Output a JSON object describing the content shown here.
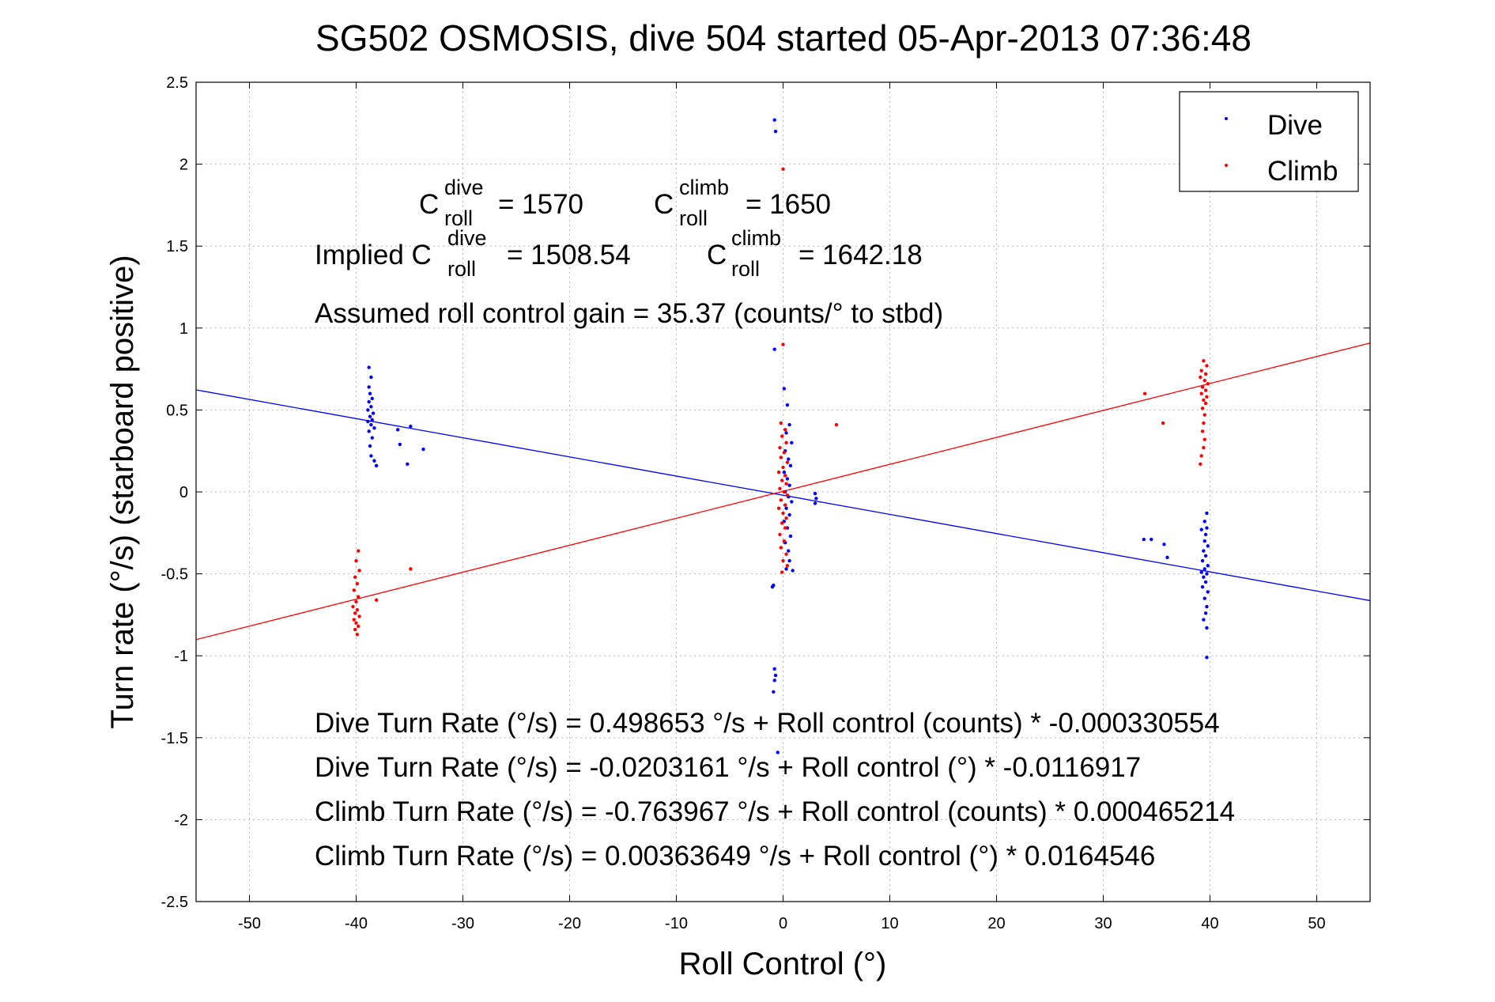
{
  "chart_data": {
    "type": "scatter",
    "title": "SG502 OSMOSIS, dive 504 started 05-Apr-2013 07:36:48",
    "xlabel": "Roll Control (°)",
    "ylabel": "Turn rate (°/s) (starboard positive)",
    "xlim": [
      -55,
      55
    ],
    "ylim": [
      -2.5,
      2.5
    ],
    "xticks": [
      -50,
      -40,
      -30,
      -20,
      -10,
      0,
      10,
      20,
      30,
      40,
      50
    ],
    "yticks": [
      -2.5,
      -2,
      -1.5,
      -1,
      -0.5,
      0,
      0.5,
      1,
      1.5,
      2,
      2.5
    ],
    "grid": true,
    "legend": {
      "placement": "top-right",
      "entries": [
        "Dive",
        "Climb"
      ]
    },
    "colors": {
      "dive": "#0000ff",
      "climb": "#ff0000"
    },
    "series": [
      {
        "name": "Dive",
        "color": "#0000ff",
        "points": [
          [
            -38.8,
            0.76
          ],
          [
            -38.6,
            0.7
          ],
          [
            -38.8,
            0.64
          ],
          [
            -38.7,
            0.6
          ],
          [
            -38.5,
            0.57
          ],
          [
            -38.8,
            0.55
          ],
          [
            -38.6,
            0.52
          ],
          [
            -38.9,
            0.5
          ],
          [
            -38.4,
            0.48
          ],
          [
            -38.7,
            0.46
          ],
          [
            -38.5,
            0.44
          ],
          [
            -38.9,
            0.43
          ],
          [
            -38.6,
            0.41
          ],
          [
            -38.3,
            0.39
          ],
          [
            -38.8,
            0.37
          ],
          [
            -38.5,
            0.33
          ],
          [
            -38.7,
            0.28
          ],
          [
            -38.6,
            0.22
          ],
          [
            -38.3,
            0.19
          ],
          [
            -38.1,
            0.16
          ],
          [
            -36.1,
            0.38
          ],
          [
            -34.9,
            0.4
          ],
          [
            -35.9,
            0.29
          ],
          [
            -35.2,
            0.17
          ],
          [
            -33.7,
            0.26
          ],
          [
            -0.8,
            2.27
          ],
          [
            -0.7,
            2.2
          ],
          [
            -0.8,
            0.87
          ],
          [
            -0.9,
            -0.57
          ],
          [
            -1.0,
            -0.58
          ],
          [
            -0.8,
            -1.08
          ],
          [
            -0.7,
            -1.12
          ],
          [
            -0.8,
            -1.15
          ],
          [
            -0.9,
            -1.22
          ],
          [
            -0.5,
            -1.59
          ],
          [
            0.1,
            0.63
          ],
          [
            0.4,
            0.53
          ],
          [
            0.6,
            0.41
          ],
          [
            0.3,
            0.36
          ],
          [
            0.8,
            0.3
          ],
          [
            0.2,
            0.25
          ],
          [
            0.5,
            0.2
          ],
          [
            0.7,
            0.16
          ],
          [
            0.1,
            0.12
          ],
          [
            0.4,
            0.08
          ],
          [
            0.6,
            0.04
          ],
          [
            0.2,
            0.0
          ],
          [
            0.5,
            -0.03
          ],
          [
            0.8,
            -0.06
          ],
          [
            0.3,
            -0.1
          ],
          [
            0.6,
            -0.14
          ],
          [
            0.1,
            -0.18
          ],
          [
            0.4,
            -0.22
          ],
          [
            0.7,
            -0.27
          ],
          [
            0.2,
            -0.31
          ],
          [
            0.5,
            -0.36
          ],
          [
            0.6,
            -0.42
          ],
          [
            0.3,
            -0.47
          ],
          [
            0.9,
            -0.48
          ],
          [
            3.0,
            -0.01
          ],
          [
            3.1,
            -0.04
          ],
          [
            3.0,
            -0.07
          ],
          [
            33.8,
            -0.29
          ],
          [
            34.5,
            -0.29
          ],
          [
            35.7,
            -0.32
          ],
          [
            36.0,
            -0.4
          ],
          [
            39.7,
            -0.13
          ],
          [
            39.5,
            -0.18
          ],
          [
            39.7,
            -0.22
          ],
          [
            39.2,
            -0.23
          ],
          [
            39.6,
            -0.26
          ],
          [
            39.5,
            -0.3
          ],
          [
            39.8,
            -0.33
          ],
          [
            39.4,
            -0.36
          ],
          [
            39.6,
            -0.39
          ],
          [
            39.3,
            -0.42
          ],
          [
            39.8,
            -0.45
          ],
          [
            39.5,
            -0.47
          ],
          [
            39.2,
            -0.49
          ],
          [
            39.7,
            -0.5
          ],
          [
            39.4,
            -0.52
          ],
          [
            39.6,
            -0.55
          ],
          [
            39.3,
            -0.58
          ],
          [
            39.8,
            -0.61
          ],
          [
            39.5,
            -0.65
          ],
          [
            39.7,
            -0.7
          ],
          [
            39.6,
            -0.74
          ],
          [
            39.4,
            -0.78
          ],
          [
            39.7,
            -0.83
          ],
          [
            39.7,
            -1.01
          ]
        ]
      },
      {
        "name": "Climb",
        "color": "#ff0000",
        "points": [
          [
            -39.8,
            -0.36
          ],
          [
            -40.0,
            -0.42
          ],
          [
            -39.7,
            -0.48
          ],
          [
            -40.1,
            -0.52
          ],
          [
            -39.9,
            -0.56
          ],
          [
            -40.2,
            -0.6
          ],
          [
            -39.8,
            -0.64
          ],
          [
            -40.0,
            -0.67
          ],
          [
            -40.3,
            -0.7
          ],
          [
            -39.9,
            -0.72
          ],
          [
            -40.1,
            -0.74
          ],
          [
            -39.7,
            -0.76
          ],
          [
            -40.2,
            -0.78
          ],
          [
            -40.0,
            -0.8
          ],
          [
            -39.8,
            -0.82
          ],
          [
            -40.1,
            -0.84
          ],
          [
            -39.9,
            -0.87
          ],
          [
            -38.1,
            -0.66
          ],
          [
            -34.9,
            -0.47
          ],
          [
            0.0,
            1.97
          ],
          [
            0.0,
            0.9
          ],
          [
            -0.2,
            0.42
          ],
          [
            0.2,
            0.38
          ],
          [
            -0.1,
            0.34
          ],
          [
            0.3,
            0.3
          ],
          [
            -0.3,
            0.27
          ],
          [
            0.1,
            0.24
          ],
          [
            -0.2,
            0.21
          ],
          [
            0.4,
            0.18
          ],
          [
            0.0,
            0.15
          ],
          [
            -0.4,
            0.12
          ],
          [
            0.2,
            0.1
          ],
          [
            -0.1,
            0.07
          ],
          [
            0.3,
            0.05
          ],
          [
            -0.3,
            0.02
          ],
          [
            0.1,
            0.0
          ],
          [
            0.4,
            -0.02
          ],
          [
            -0.2,
            -0.05
          ],
          [
            0.2,
            -0.08
          ],
          [
            -0.4,
            -0.1
          ],
          [
            0.0,
            -0.13
          ],
          [
            0.3,
            -0.16
          ],
          [
            -0.1,
            -0.19
          ],
          [
            0.2,
            -0.22
          ],
          [
            -0.3,
            -0.26
          ],
          [
            0.1,
            -0.3
          ],
          [
            -0.2,
            -0.34
          ],
          [
            0.3,
            -0.38
          ],
          [
            0.0,
            -0.42
          ],
          [
            0.4,
            -0.45
          ],
          [
            -0.1,
            -0.49
          ],
          [
            5.0,
            0.41
          ],
          [
            33.9,
            0.6
          ],
          [
            35.6,
            0.42
          ],
          [
            39.4,
            0.8
          ],
          [
            39.7,
            0.77
          ],
          [
            39.2,
            0.74
          ],
          [
            39.6,
            0.72
          ],
          [
            39.1,
            0.7
          ],
          [
            39.5,
            0.68
          ],
          [
            39.8,
            0.66
          ],
          [
            39.3,
            0.64
          ],
          [
            39.6,
            0.62
          ],
          [
            39.2,
            0.6
          ],
          [
            39.7,
            0.58
          ],
          [
            39.4,
            0.56
          ],
          [
            39.6,
            0.54
          ],
          [
            39.3,
            0.51
          ],
          [
            39.5,
            0.47
          ],
          [
            39.4,
            0.42
          ],
          [
            39.3,
            0.37
          ],
          [
            39.5,
            0.32
          ],
          [
            39.4,
            0.27
          ],
          [
            39.2,
            0.22
          ],
          [
            39.1,
            0.17
          ]
        ]
      }
    ],
    "fit_lines": [
      {
        "name": "Dive",
        "color": "#0000ff",
        "intercept": -0.0203161,
        "slope": -0.0116917
      },
      {
        "name": "Climb",
        "color": "#ff0000",
        "intercept": 0.00363649,
        "slope": 0.0164546
      }
    ],
    "annotations": {
      "c_roll_dive": {
        "prefix": "C",
        "sup": "dive",
        "sub": "roll",
        "value": "= 1570"
      },
      "c_roll_climb": {
        "prefix": "C",
        "sup": "climb",
        "sub": "roll",
        "value": "= 1650"
      },
      "implied_dive": {
        "prefix": "Implied C",
        "sup": "dive",
        "sub": "roll",
        "value": "= 1508.54"
      },
      "implied_climb": {
        "prefix": "C",
        "sup": "climb",
        "sub": "roll",
        "value": "= 1642.18"
      },
      "gain": "Assumed roll control gain = 35.37 (counts/° to stbd)",
      "eq1": "Dive Turn Rate (°/s) = 0.498653 °/s + Roll control (counts) * -0.000330554",
      "eq2": "Dive Turn Rate (°/s) = -0.0203161 °/s + Roll control (°) * -0.0116917",
      "eq3": "Climb Turn Rate (°/s) = -0.763967 °/s + Roll control (counts) * 0.000465214",
      "eq4": "Climb Turn Rate (°/s) = 0.00363649 °/s + Roll control (°) * 0.0164546"
    }
  }
}
